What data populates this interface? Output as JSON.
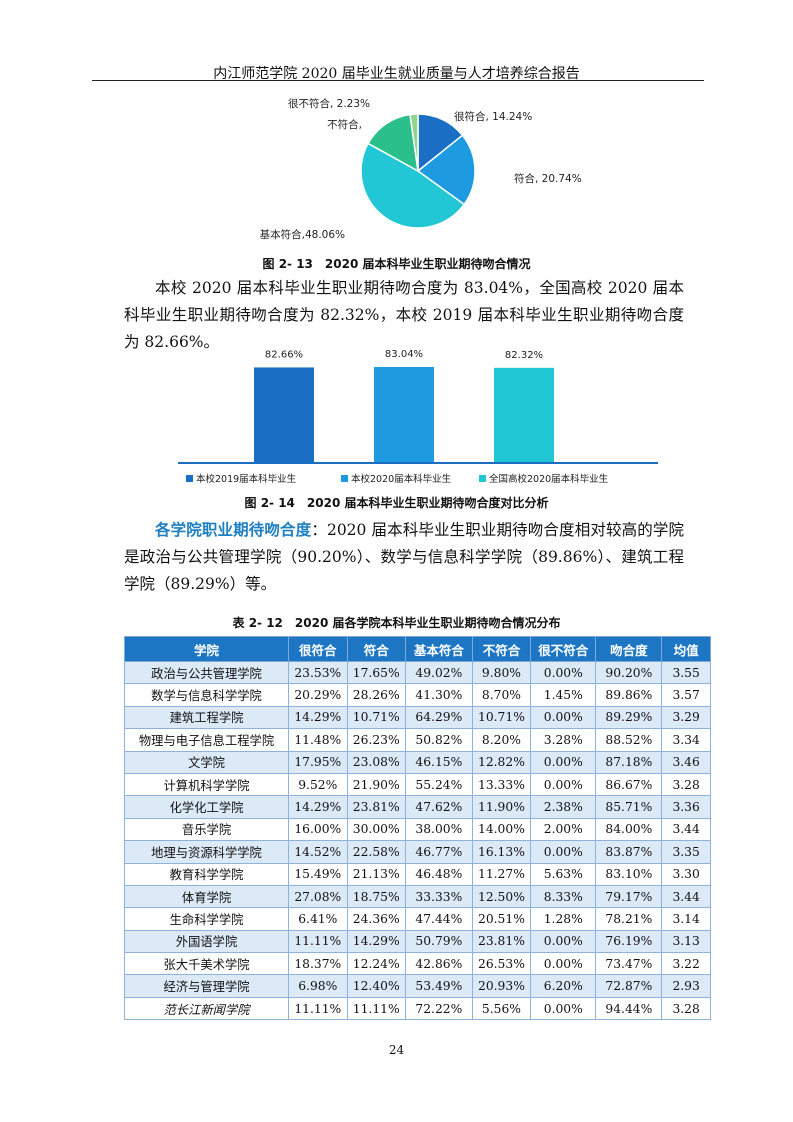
{
  "header": {
    "title": "内江师范学院 2020 届毕业生就业质量与人才培养综合报告"
  },
  "figure1": {
    "caption": "图 2- 13　2020 届本科毕业生职业期待吻合情况",
    "chart_data": {
      "type": "pie",
      "labels": [
        "很符合",
        "符合",
        "基本符合",
        "不符合",
        "很不符合"
      ],
      "values": [
        14.24,
        20.74,
        48.06,
        14.73,
        2.23
      ],
      "slice_labels": [
        "很符合, 14.24%",
        "符合, 20.74%",
        "基本符合,48.06%",
        "不符合,",
        "很不符合, 2.23%"
      ],
      "colors": [
        "#1a6fc4",
        "#1e9be0",
        "#22c7d6",
        "#2bbf8c",
        "#8fd48a"
      ]
    }
  },
  "paragraph1": "本校 2020 届本科毕业生职业期待吻合度为 83.04%，全国高校 2020 届本科毕业生职业期待吻合度为 82.32%，本校 2019 届本科毕业生职业期待吻合度为 82.66%。",
  "figure2": {
    "caption": "图 2- 14　2020 届本科毕业生职业期待吻合度对比分析",
    "chart_data": {
      "type": "bar",
      "categories": [
        "本校2019届本科毕业生",
        "本校2020届本科毕业生",
        "全国高校2020届本科毕业生"
      ],
      "values": [
        82.66,
        83.04,
        82.32
      ],
      "value_labels": [
        "82.66%",
        "83.04%",
        "82.32%"
      ],
      "colors": [
        "#1a6fc4",
        "#1e9be0",
        "#22c7d6"
      ],
      "legend_position": "bottom"
    }
  },
  "paragraph2": {
    "lead": "各学院职业期待吻合度",
    "text": "：2020 届本科毕业生职业期待吻合度相对较高的学院是政治与公共管理学院（90.20%）、数学与信息科学学院（89.86%）、建筑工程学院（89.29%）等。"
  },
  "table": {
    "caption": "表 2- 12　2020 届各学院本科毕业生职业期待吻合情况分布",
    "headers": [
      "学院",
      "很符合",
      "符合",
      "基本符合",
      "不符合",
      "很不符合",
      "吻合度",
      "均值"
    ],
    "rows": [
      [
        "政治与公共管理学院",
        "23.53%",
        "17.65%",
        "49.02%",
        "9.80%",
        "0.00%",
        "90.20%",
        "3.55"
      ],
      [
        "数学与信息科学学院",
        "20.29%",
        "28.26%",
        "41.30%",
        "8.70%",
        "1.45%",
        "89.86%",
        "3.57"
      ],
      [
        "建筑工程学院",
        "14.29%",
        "10.71%",
        "64.29%",
        "10.71%",
        "0.00%",
        "89.29%",
        "3.29"
      ],
      [
        "物理与电子信息工程学院",
        "11.48%",
        "26.23%",
        "50.82%",
        "8.20%",
        "3.28%",
        "88.52%",
        "3.34"
      ],
      [
        "文学院",
        "17.95%",
        "23.08%",
        "46.15%",
        "12.82%",
        "0.00%",
        "87.18%",
        "3.46"
      ],
      [
        "计算机科学学院",
        "9.52%",
        "21.90%",
        "55.24%",
        "13.33%",
        "0.00%",
        "86.67%",
        "3.28"
      ],
      [
        "化学化工学院",
        "14.29%",
        "23.81%",
        "47.62%",
        "11.90%",
        "2.38%",
        "85.71%",
        "3.36"
      ],
      [
        "音乐学院",
        "16.00%",
        "30.00%",
        "38.00%",
        "14.00%",
        "2.00%",
        "84.00%",
        "3.44"
      ],
      [
        "地理与资源科学学院",
        "14.52%",
        "22.58%",
        "46.77%",
        "16.13%",
        "0.00%",
        "83.87%",
        "3.35"
      ],
      [
        "教育科学学院",
        "15.49%",
        "21.13%",
        "46.48%",
        "11.27%",
        "5.63%",
        "83.10%",
        "3.30"
      ],
      [
        "体育学院",
        "27.08%",
        "18.75%",
        "33.33%",
        "12.50%",
        "8.33%",
        "79.17%",
        "3.44"
      ],
      [
        "生命科学学院",
        "6.41%",
        "24.36%",
        "47.44%",
        "20.51%",
        "1.28%",
        "78.21%",
        "3.14"
      ],
      [
        "外国语学院",
        "11.11%",
        "14.29%",
        "50.79%",
        "23.81%",
        "0.00%",
        "76.19%",
        "3.13"
      ],
      [
        "张大千美术学院",
        "18.37%",
        "12.24%",
        "42.86%",
        "26.53%",
        "0.00%",
        "73.47%",
        "3.22"
      ],
      [
        "经济与管理学院",
        "6.98%",
        "12.40%",
        "53.49%",
        "20.93%",
        "6.20%",
        "72.87%",
        "2.93"
      ],
      [
        "范长江新闻学院",
        "11.11%",
        "11.11%",
        "72.22%",
        "5.56%",
        "0.00%",
        "94.44%",
        "3.28"
      ]
    ]
  },
  "footer": {
    "page_number": "24"
  }
}
